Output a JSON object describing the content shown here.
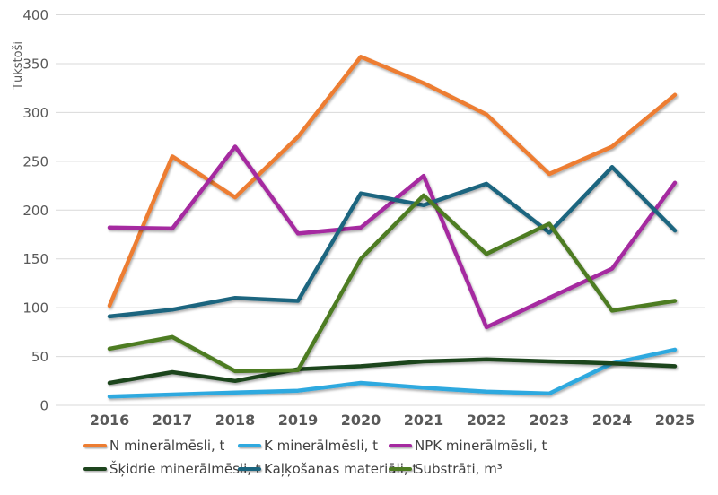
{
  "chart_data": {
    "type": "line",
    "title": "",
    "ylabel": "Tūkstoši",
    "xlabel": "",
    "ylim": [
      0,
      400
    ],
    "ytick_step": 50,
    "grid": true,
    "legend_position": "bottom",
    "categories": [
      "2016",
      "2017",
      "2018",
      "2019",
      "2020",
      "2021",
      "2022",
      "2023",
      "2024",
      "2025"
    ],
    "series": [
      {
        "name": "N minerālmēsli, t",
        "color": "#ED7D31",
        "values": [
          102,
          255,
          213,
          275,
          357,
          330,
          298,
          237,
          265,
          318
        ]
      },
      {
        "name": "K minerālmēsli, t",
        "color": "#2FA9DF",
        "values": [
          9,
          11,
          13,
          15,
          23,
          18,
          14,
          12,
          43,
          57
        ]
      },
      {
        "name": "NPK minerālmēsli, t",
        "color": "#A52AA0",
        "values": [
          182,
          181,
          265,
          176,
          182,
          235,
          80,
          110,
          140,
          228
        ]
      },
      {
        "name": "Šķidrie minerālmēsli, t",
        "color": "#1E451E",
        "values": [
          23,
          34,
          25,
          37,
          40,
          45,
          47,
          45,
          43,
          40
        ]
      },
      {
        "name": "Kaļķošanas materiāli, t",
        "color": "#1B657F",
        "values": [
          91,
          98,
          110,
          107,
          217,
          205,
          227,
          177,
          244,
          179
        ]
      },
      {
        "name": "Substrāti, m³",
        "color": "#4E7C22",
        "values": [
          58,
          70,
          35,
          36,
          150,
          215,
          155,
          186,
          97,
          107
        ]
      }
    ],
    "colors": {
      "gridline": "#d9d9d9",
      "tick_text": "#595959",
      "legend_text": "#404040",
      "background": "#ffffff"
    }
  }
}
